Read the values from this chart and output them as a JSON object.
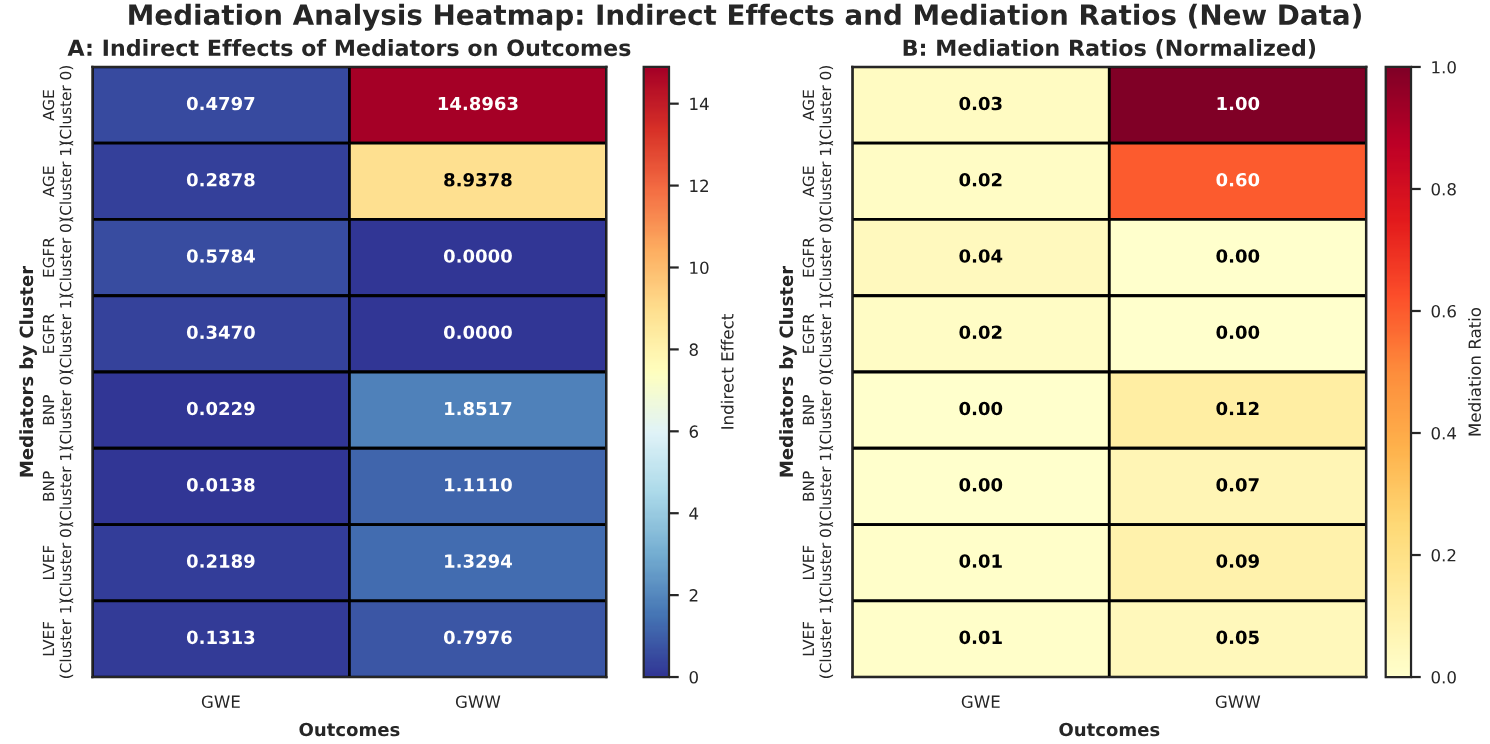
{
  "chart_data": [
    {
      "type": "heatmap",
      "annotations": [
        "Mediation Analysis Heatmap: Indirect Effects and Mediation Ratios (New Data)"
      ],
      "title": "A: Indirect Effects of Mediators on Outcomes",
      "xlabel": "Outcomes",
      "ylabel": "Mediators by Cluster",
      "clabel": "Indirect Effect",
      "categories": [
        "GWE",
        "GWW"
      ],
      "y_categories": [
        "AGE\n(Cluster 0)",
        "AGE\n(Cluster 1)",
        "EGFR\n(Cluster 0)",
        "EGFR\n(Cluster 1)",
        "BNP\n(Cluster 0)",
        "BNP\n(Cluster 1)",
        "LVEF\n(Cluster 0)",
        "LVEF\n(Cluster 1)"
      ],
      "cells": [
        [
          0.4797,
          14.8963
        ],
        [
          0.2878,
          8.9378
        ],
        [
          0.5784,
          0.0
        ],
        [
          0.347,
          0.0
        ],
        [
          0.0229,
          1.8517
        ],
        [
          0.0138,
          1.111
        ],
        [
          0.2189,
          1.3294
        ],
        [
          0.1313,
          0.7976
        ]
      ],
      "cell_labels": [
        [
          "0.4797",
          "14.8963"
        ],
        [
          "0.2878",
          "8.9378"
        ],
        [
          "0.5784",
          "0.0000"
        ],
        [
          "0.3470",
          "0.0000"
        ],
        [
          "0.0229",
          "1.8517"
        ],
        [
          "0.0138",
          "1.1110"
        ],
        [
          "0.2189",
          "1.3294"
        ],
        [
          "0.1313",
          "0.7976"
        ]
      ],
      "clim": [
        0,
        14.8963
      ],
      "cticks": [
        0,
        2,
        4,
        6,
        8,
        10,
        12,
        14
      ]
    },
    {
      "type": "heatmap",
      "title": "B: Mediation Ratios (Normalized)",
      "xlabel": "Outcomes",
      "ylabel": "Mediators by Cluster",
      "clabel": "Mediation Ratio",
      "categories": [
        "GWE",
        "GWW"
      ],
      "y_categories": [
        "AGE\n(Cluster 0)",
        "AGE\n(Cluster 1)",
        "EGFR\n(Cluster 0)",
        "EGFR\n(Cluster 1)",
        "BNP\n(Cluster 0)",
        "BNP\n(Cluster 1)",
        "LVEF\n(Cluster 0)",
        "LVEF\n(Cluster 1)"
      ],
      "cells": [
        [
          0.03,
          1.0
        ],
        [
          0.02,
          0.6
        ],
        [
          0.04,
          0.0
        ],
        [
          0.02,
          0.0
        ],
        [
          0.0,
          0.12
        ],
        [
          0.0,
          0.07
        ],
        [
          0.01,
          0.09
        ],
        [
          0.01,
          0.05
        ]
      ],
      "cell_labels": [
        [
          "0.03",
          "1.00"
        ],
        [
          "0.02",
          "0.60"
        ],
        [
          "0.04",
          "0.00"
        ],
        [
          "0.02",
          "0.00"
        ],
        [
          "0.00",
          "0.12"
        ],
        [
          "0.00",
          "0.07"
        ],
        [
          "0.01",
          "0.09"
        ],
        [
          "0.01",
          "0.05"
        ]
      ],
      "clim": [
        0,
        1.0
      ],
      "cticks": [
        {
          "value": 0,
          "label": "0.0"
        },
        0.2,
        0.4,
        0.6,
        0.8,
        {
          "value": 1,
          "label": "1.0"
        }
      ]
    }
  ]
}
